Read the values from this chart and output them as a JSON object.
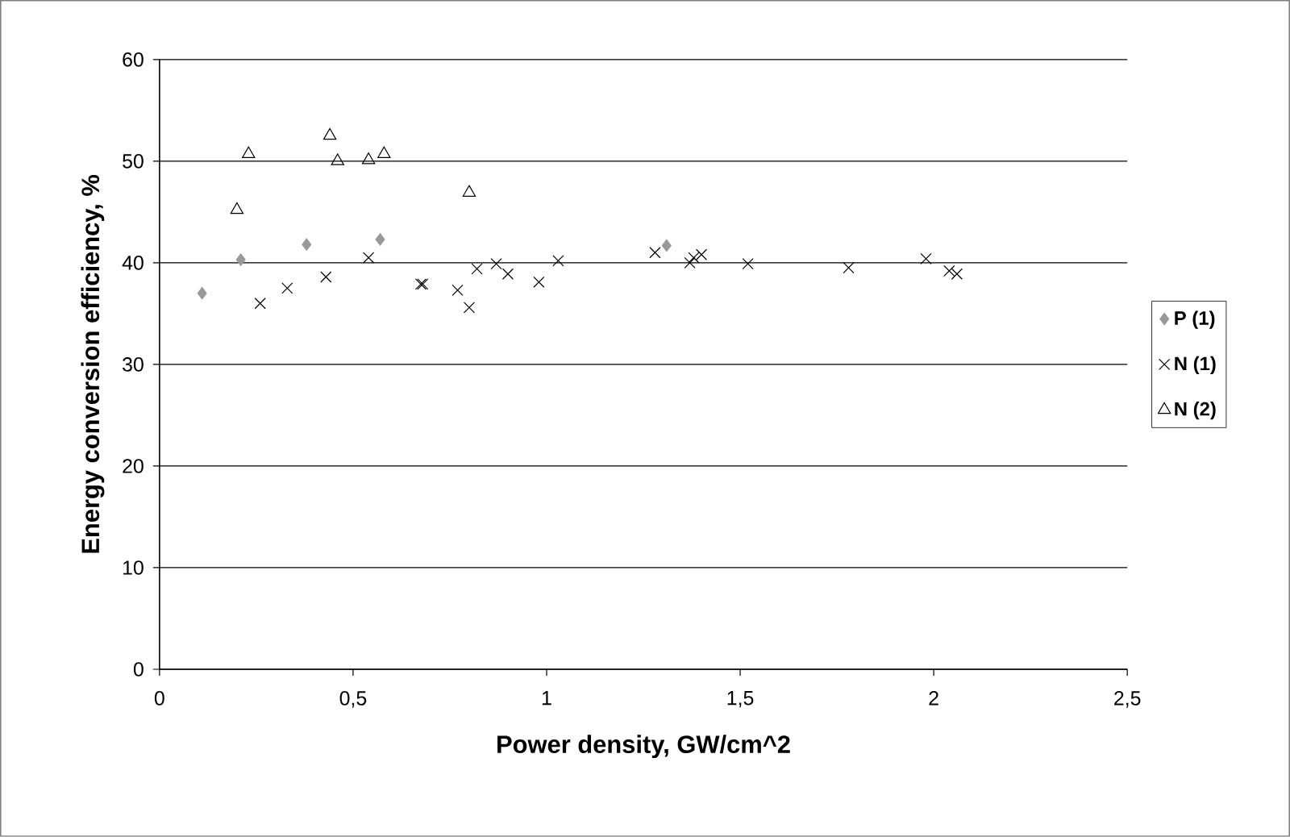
{
  "chart_data": {
    "type": "scatter",
    "xlabel": "Power  density, GW/cm^2",
    "ylabel": "Energy conversion efficiency, %",
    "xlim": [
      0,
      2.5
    ],
    "ylim": [
      0,
      60
    ],
    "xticks": [
      0,
      {
        "value": 0.5,
        "label": "0,5"
      },
      1,
      {
        "value": 1.5,
        "label": "1,5"
      },
      2,
      {
        "value": 2.5,
        "label": "2,5"
      }
    ],
    "yticks": [
      0,
      10,
      20,
      30,
      40,
      50,
      60
    ],
    "grid": "y",
    "legend": "right",
    "series": [
      {
        "name": "P (1)",
        "color": "#999999",
        "marker": "diamond",
        "x": [
          0.11,
          0.21,
          0.38,
          0.57,
          1.31
        ],
        "values": [
          37.0,
          40.3,
          41.8,
          42.3,
          41.7
        ]
      },
      {
        "name": "N (1)",
        "color": "#000000",
        "marker": "cross",
        "x": [
          0.26,
          0.33,
          0.43,
          0.54,
          0.675,
          0.68,
          0.77,
          0.8,
          0.82,
          0.87,
          0.9,
          0.98,
          1.03,
          1.28,
          1.37,
          1.38,
          1.4,
          1.52,
          1.78,
          1.98,
          2.04,
          2.06
        ],
        "values": [
          36.0,
          37.5,
          38.6,
          40.5,
          37.9,
          37.9,
          37.3,
          35.6,
          39.4,
          39.9,
          38.9,
          38.1,
          40.2,
          41.0,
          40.0,
          40.5,
          40.8,
          39.9,
          39.5,
          40.4,
          39.2,
          38.9
        ]
      },
      {
        "name": "N (2)",
        "color": "#000000",
        "marker": "triangle",
        "x": [
          0.2,
          0.23,
          0.44,
          0.46,
          0.54,
          0.58,
          0.8
        ],
        "values": [
          45.2,
          50.7,
          52.5,
          50.0,
          50.1,
          50.7,
          46.9
        ]
      }
    ]
  }
}
